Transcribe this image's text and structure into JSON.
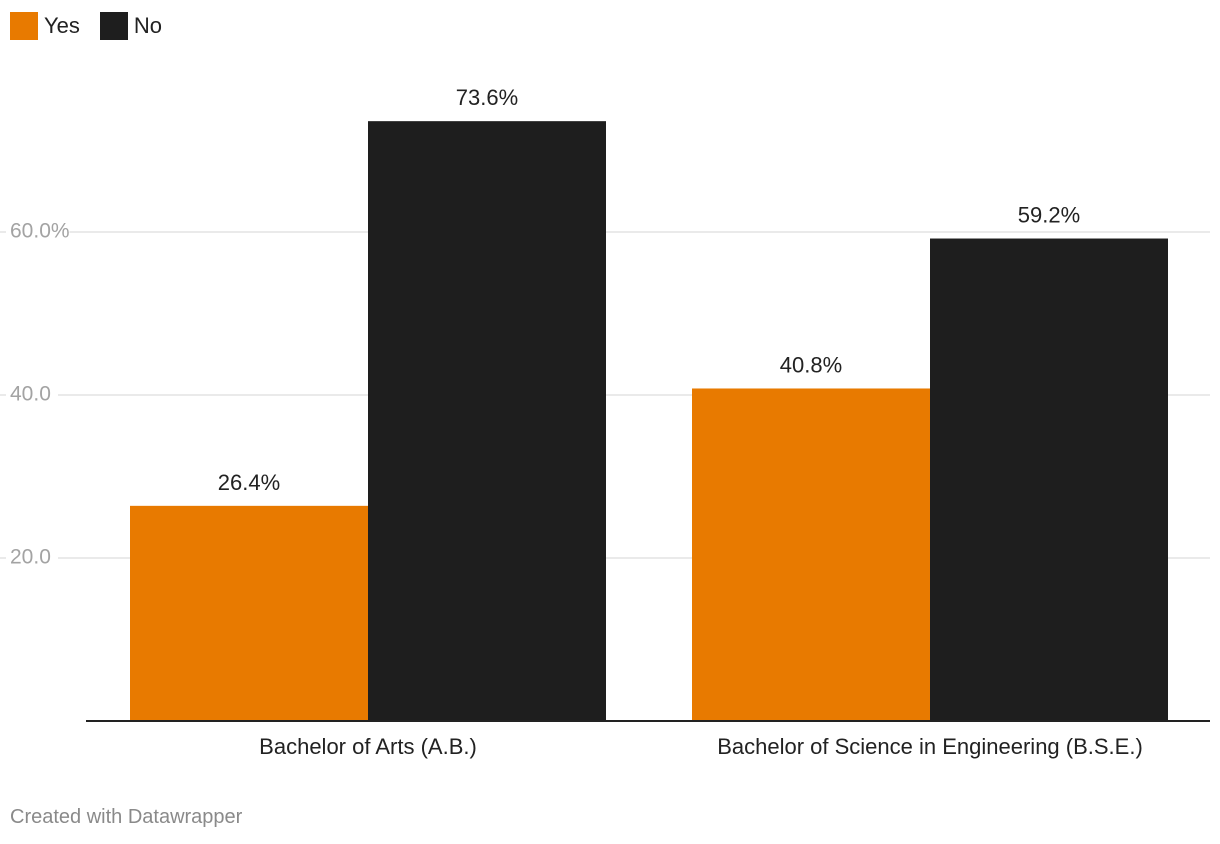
{
  "chart_data": {
    "type": "bar",
    "categories": [
      "Bachelor of Arts (A.B.)",
      "Bachelor of Science in Engineering (B.S.E.)"
    ],
    "series": [
      {
        "name": "Yes",
        "values": [
          26.4,
          40.8
        ],
        "labels": [
          "26.4%",
          "40.8%"
        ],
        "color": "#e87a00"
      },
      {
        "name": "No",
        "values": [
          73.6,
          59.2
        ],
        "labels": [
          "73.6%",
          "59.2%"
        ],
        "color": "#1e1e1e"
      }
    ],
    "yticks": [
      {
        "value": 20,
        "label": "20.0"
      },
      {
        "value": 40,
        "label": "40.0"
      },
      {
        "value": 60,
        "label": "60.0%"
      }
    ],
    "ylim": [
      0,
      80
    ],
    "grid": true,
    "legend_position": "top-left",
    "title": "",
    "xlabel": "",
    "ylabel": ""
  },
  "legend": {
    "yes_label": "Yes",
    "no_label": "No",
    "yes_color": "#e87a00",
    "no_color": "#1e1e1e"
  },
  "footer": {
    "credit": "Created with Datawrapper"
  }
}
